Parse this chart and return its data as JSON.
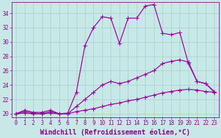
{
  "xlabel": "Windchill (Refroidissement éolien,°C)",
  "bg_color": "#c8e8e8",
  "line_color": "#990099",
  "grid_color": "#a8cccc",
  "text_color": "#880088",
  "xlim": [
    -0.5,
    23.5
  ],
  "ylim": [
    19.5,
    35.5
  ],
  "xticks": [
    0,
    1,
    2,
    3,
    4,
    5,
    6,
    7,
    8,
    9,
    10,
    11,
    12,
    13,
    14,
    15,
    16,
    17,
    18,
    19,
    20,
    21,
    22,
    23
  ],
  "yticks": [
    20,
    22,
    24,
    26,
    28,
    30,
    32,
    34
  ],
  "line1_x": [
    0,
    1,
    2,
    3,
    4,
    5,
    6,
    7,
    8,
    9,
    10,
    11,
    12,
    13,
    14,
    15,
    16,
    17,
    18,
    19,
    20,
    21,
    22,
    23
  ],
  "line1_y": [
    20.0,
    20.5,
    20.2,
    20.2,
    20.5,
    20.0,
    20.1,
    23.0,
    29.5,
    32.0,
    33.5,
    33.3,
    29.8,
    33.3,
    33.3,
    35.0,
    35.2,
    31.2,
    31.0,
    31.3,
    27.0,
    24.5,
    24.2,
    23.0
  ],
  "line2_x": [
    0,
    1,
    2,
    3,
    4,
    5,
    6,
    7,
    8,
    9,
    10,
    11,
    12,
    13,
    14,
    15,
    16,
    17,
    18,
    19,
    20,
    21,
    22,
    23
  ],
  "line2_y": [
    20.0,
    20.3,
    20.1,
    20.0,
    20.3,
    20.0,
    20.0,
    21.0,
    22.0,
    23.0,
    24.0,
    24.5,
    24.2,
    24.5,
    25.0,
    25.5,
    26.0,
    27.0,
    27.3,
    27.5,
    27.2,
    24.5,
    24.2,
    23.1
  ],
  "line3_x": [
    0,
    1,
    2,
    3,
    4,
    5,
    6,
    7,
    8,
    9,
    10,
    11,
    12,
    13,
    14,
    15,
    16,
    17,
    18,
    19,
    20,
    21,
    22,
    23
  ],
  "line3_y": [
    20.0,
    20.1,
    20.0,
    20.0,
    20.1,
    20.0,
    20.0,
    20.3,
    20.5,
    20.7,
    21.0,
    21.3,
    21.5,
    21.8,
    22.0,
    22.3,
    22.6,
    22.9,
    23.1,
    23.3,
    23.4,
    23.3,
    23.1,
    23.0
  ],
  "marker": "+",
  "markersize": 4,
  "linewidth": 0.9,
  "tick_fontsize": 5.5,
  "xlabel_fontsize": 7
}
